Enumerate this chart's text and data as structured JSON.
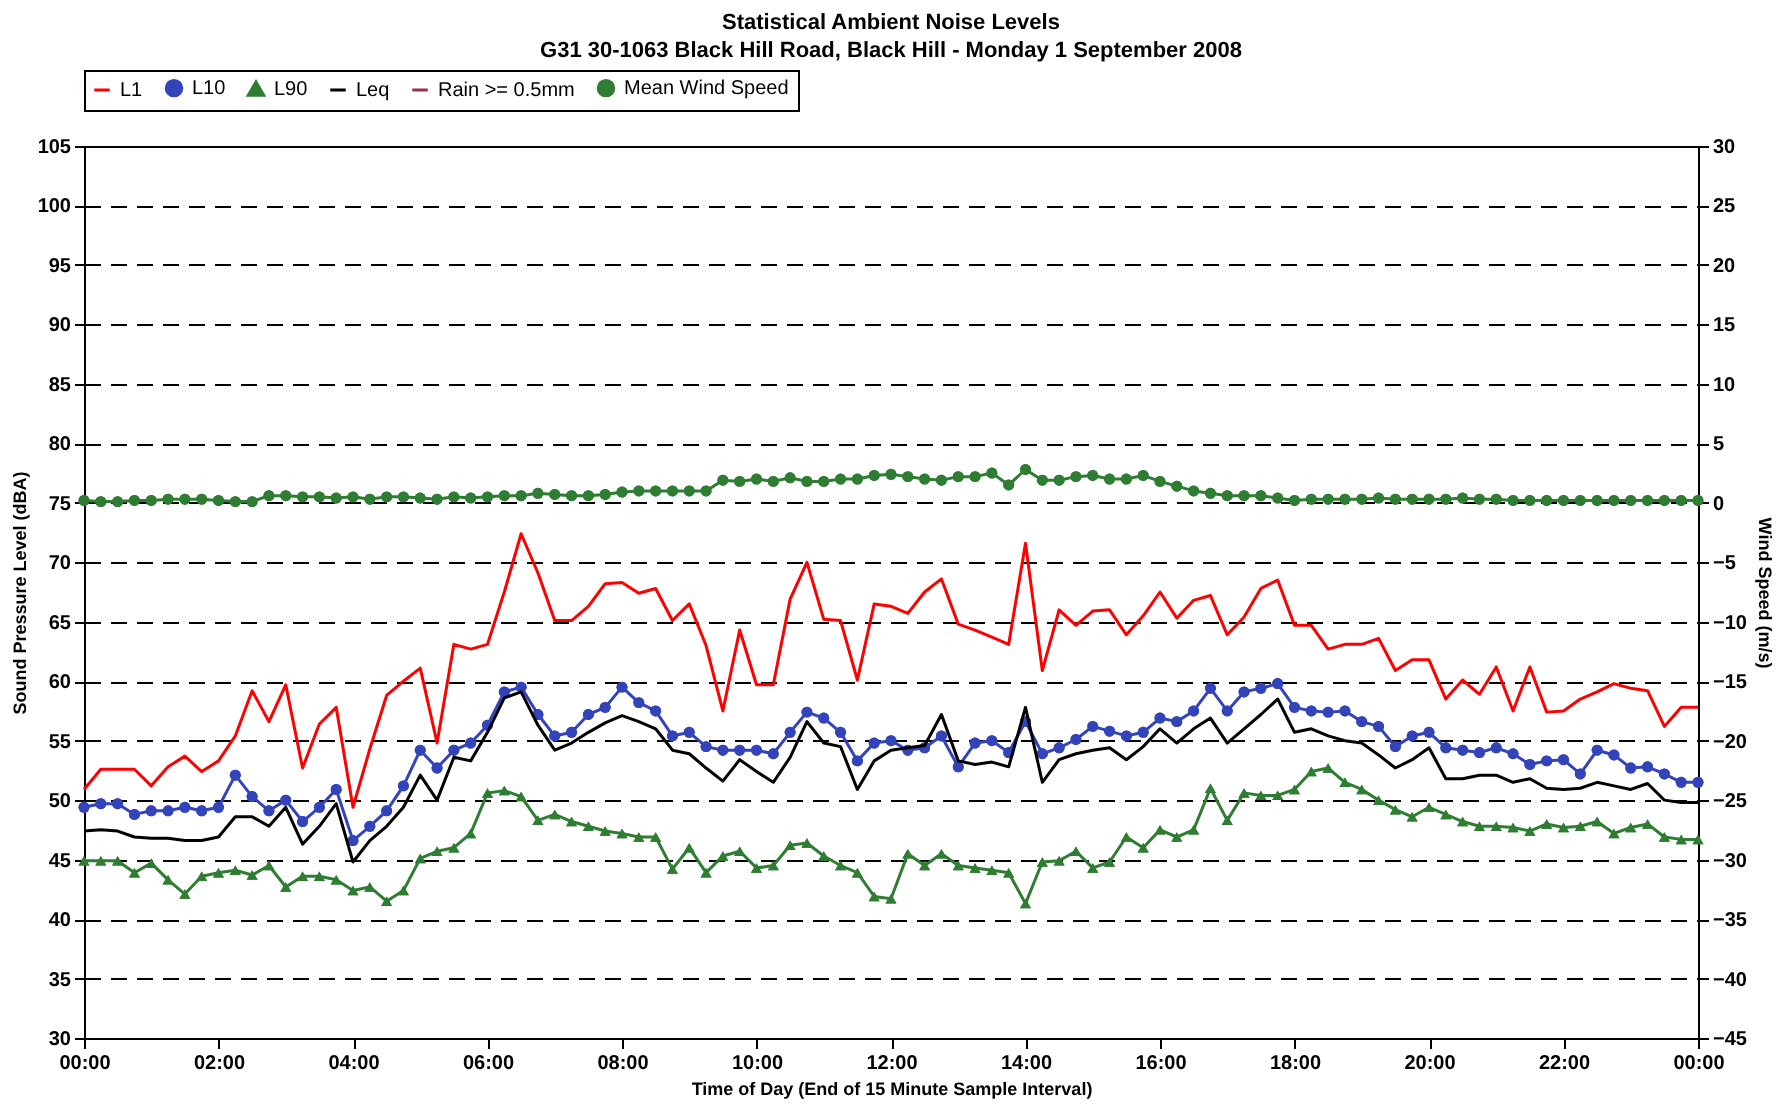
{
  "chart_data": {
    "type": "line",
    "title": "Statistical Ambient Noise Levels",
    "subtitle": "G31 30-1063 Black Hill Road, Black Hill - Monday 1 September 2008",
    "xlabel": "Time of Day (End of 15 Minute Sample Interval)",
    "ylabel": "Sound Pressure Level (dBA)",
    "y2label": "Wind Speed (m/s)",
    "x": [
      0,
      0.25,
      0.5,
      0.75,
      1,
      1.25,
      1.5,
      1.75,
      2,
      2.25,
      2.5,
      2.75,
      3,
      3.25,
      3.5,
      3.75,
      4,
      4.25,
      4.5,
      4.75,
      5,
      5.25,
      5.5,
      5.75,
      6,
      6.25,
      6.5,
      6.75,
      7,
      7.25,
      7.5,
      7.75,
      8,
      8.25,
      8.5,
      8.75,
      9,
      9.25,
      9.5,
      9.75,
      10,
      10.25,
      10.5,
      10.75,
      11,
      11.25,
      11.5,
      11.75,
      12,
      12.25,
      12.5,
      12.75,
      13,
      13.25,
      13.5,
      13.75,
      14,
      14.25,
      14.5,
      14.75,
      15,
      15.25,
      15.5,
      15.75,
      16,
      16.25,
      16.5,
      16.75,
      17,
      17.25,
      17.5,
      17.75,
      18,
      18.25,
      18.5,
      18.75,
      19,
      19.25,
      19.5,
      19.75,
      20,
      20.25,
      20.5,
      20.75,
      21,
      21.25,
      21.5,
      21.75,
      22,
      22.25,
      22.5,
      22.75,
      23,
      23.25,
      23.5,
      23.75,
      24
    ],
    "series": [
      {
        "name": "L1",
        "color": "#ff0000",
        "marker": "none",
        "line_style": "solid",
        "values": [
          50.9,
          52.6,
          52.6,
          52.6,
          51.2,
          52.8,
          53.7,
          52.4,
          53.3,
          55.4,
          59.2,
          56.6,
          59.7,
          52.7,
          56.4,
          57.8,
          49.4,
          54.3,
          58.8,
          60,
          61.1,
          54.8,
          63.1,
          62.7,
          63.1,
          67.5,
          72.4,
          69.1,
          65.1,
          65.1,
          66.3,
          68.2,
          68.3,
          67.4,
          67.8,
          65.1,
          66.5,
          63,
          57.5,
          64.3,
          59.7,
          59.7,
          66.9,
          70,
          65.2,
          65.1,
          60.1,
          66.5,
          66.3,
          65.7,
          67.5,
          68.6,
          64.8,
          64.3,
          63.7,
          63.1,
          71.6,
          60.9,
          66,
          64.7,
          65.9,
          66,
          63.9,
          65.5,
          67.5,
          65.3,
          66.8,
          67.2,
          63.9,
          65.4,
          67.8,
          68.5,
          64.7,
          64.7,
          62.7,
          63.1,
          63.1,
          63.6,
          60.9,
          61.8,
          61.8,
          58.5,
          60.1,
          58.9,
          61.2,
          57.5,
          61.2,
          57.4,
          57.5,
          58.5,
          59.1,
          59.8,
          59.4,
          59.2,
          56.2,
          57.8,
          57.8
        ]
      },
      {
        "name": "L10",
        "color": "#3344bb",
        "marker": "circle",
        "line_style": "solid",
        "values": [
          49.4,
          49.7,
          49.7,
          48.8,
          49.1,
          49.1,
          49.4,
          49.1,
          49.4,
          52.1,
          50.3,
          49.1,
          50,
          48.2,
          49.4,
          50.9,
          46.6,
          47.8,
          49.1,
          51.2,
          54.2,
          52.7,
          54.2,
          54.8,
          56.3,
          59.1,
          59.5,
          57.2,
          55.4,
          55.7,
          57.2,
          57.8,
          59.5,
          58.2,
          57.5,
          55.4,
          55.7,
          54.5,
          54.2,
          54.2,
          54.2,
          53.9,
          55.7,
          57.4,
          56.9,
          55.7,
          53.3,
          54.8,
          55,
          54.2,
          54.4,
          55.4,
          52.8,
          54.8,
          55,
          54,
          56.6,
          53.9,
          54.4,
          55.1,
          56.2,
          55.8,
          55.4,
          55.7,
          56.9,
          56.6,
          57.5,
          59.4,
          57.5,
          59.1,
          59.4,
          59.8,
          57.8,
          57.5,
          57.4,
          57.5,
          56.6,
          56.2,
          54.5,
          55.4,
          55.7,
          54.4,
          54.2,
          54,
          54.4,
          53.9,
          53,
          53.3,
          53.4,
          52.2,
          54.2,
          53.8,
          52.7,
          52.8,
          52.2,
          51.5,
          51.5
        ]
      },
      {
        "name": "L90",
        "color": "#2e7d32",
        "marker": "triangle",
        "line_style": "solid",
        "values": [
          44.9,
          44.9,
          44.9,
          43.9,
          44.7,
          43.3,
          42.1,
          43.6,
          43.9,
          44.1,
          43.7,
          44.5,
          42.7,
          43.6,
          43.6,
          43.3,
          42.4,
          42.7,
          41.5,
          42.4,
          45.1,
          45.7,
          46,
          47.2,
          50.6,
          50.8,
          50.3,
          48.3,
          48.8,
          48.2,
          47.8,
          47.4,
          47.2,
          46.9,
          46.9,
          44.2,
          46,
          43.9,
          45.3,
          45.7,
          44.3,
          44.5,
          46.2,
          46.4,
          45.3,
          44.5,
          43.9,
          41.9,
          41.7,
          45.5,
          44.5,
          45.5,
          44.5,
          44.3,
          44.1,
          43.9,
          41.3,
          44.8,
          44.9,
          45.7,
          44.3,
          44.8,
          46.9,
          46,
          47.5,
          46.9,
          47.5,
          51,
          48.3,
          50.6,
          50.4,
          50.4,
          50.9,
          52.4,
          52.7,
          51.5,
          50.9,
          50,
          49.2,
          48.6,
          49.4,
          48.8,
          48.2,
          47.8,
          47.8,
          47.7,
          47.4,
          48,
          47.7,
          47.8,
          48.2,
          47.2,
          47.7,
          48,
          46.9,
          46.7,
          46.7
        ]
      },
      {
        "name": "Leq",
        "color": "#000000",
        "marker": "none",
        "line_style": "solid",
        "values": [
          47.4,
          47.5,
          47.4,
          46.9,
          46.8,
          46.8,
          46.6,
          46.6,
          46.9,
          48.6,
          48.6,
          47.8,
          49.4,
          46.3,
          47.8,
          49.7,
          44.8,
          46.6,
          47.8,
          49.4,
          52.1,
          50,
          53.6,
          53.3,
          55.7,
          58.6,
          59.1,
          56.3,
          54.2,
          54.8,
          55.7,
          56.5,
          57.1,
          56.6,
          56,
          54.2,
          53.9,
          52.7,
          51.6,
          53.4,
          52.4,
          51.5,
          53.6,
          56.6,
          54.8,
          54.5,
          50.9,
          53.3,
          54.2,
          54.4,
          54.6,
          57.2,
          53.3,
          53,
          53.2,
          52.8,
          57.8,
          51.5,
          53.4,
          53.9,
          54.2,
          54.4,
          53.4,
          54.5,
          56,
          54.8,
          56,
          56.9,
          54.8,
          56,
          57.2,
          58.5,
          55.7,
          56,
          55.4,
          55,
          54.8,
          53.8,
          52.7,
          53.4,
          54.4,
          51.8,
          51.8,
          52.1,
          52.1,
          51.5,
          51.8,
          51,
          50.9,
          51,
          51.5,
          51.2,
          50.9,
          51.4,
          50,
          49.8,
          49.8
        ]
      },
      {
        "name": "Rain >= 0.5mm",
        "color": "#993344",
        "marker": "none",
        "line_style": "dashed",
        "values": [
          null,
          null,
          null,
          null,
          null,
          null,
          null,
          null,
          null,
          null,
          null,
          null,
          null,
          null,
          null,
          null,
          null,
          null,
          null,
          null,
          null,
          null,
          null,
          null,
          null,
          null,
          null,
          null,
          null,
          null,
          null,
          null,
          null,
          null,
          null,
          null,
          null,
          null,
          null,
          null,
          null,
          null,
          null,
          null,
          null,
          null,
          null,
          null,
          null,
          null,
          null,
          null,
          null,
          null,
          null,
          null,
          null,
          null,
          null,
          null,
          null,
          null,
          null,
          null,
          null,
          null,
          null,
          null,
          null,
          null,
          null,
          null,
          null,
          null,
          null,
          null,
          null,
          null,
          null,
          null,
          null,
          null,
          null,
          null,
          null,
          null,
          null,
          null,
          null,
          null,
          null,
          null,
          null,
          null,
          null,
          null,
          null
        ]
      },
      {
        "name": "Mean Wind Speed",
        "color": "#2e7d32",
        "marker": "circle",
        "line_style": "solid",
        "axis": "y2",
        "values": [
          0.2,
          0.1,
          0.1,
          0.2,
          0.2,
          0.3,
          0.3,
          0.3,
          0.2,
          0.1,
          0.1,
          0.6,
          0.6,
          0.5,
          0.5,
          0.4,
          0.5,
          0.3,
          0.5,
          0.5,
          0.4,
          0.3,
          0.5,
          0.4,
          0.5,
          0.6,
          0.6,
          0.8,
          0.7,
          0.6,
          0.6,
          0.7,
          0.9,
          1.0,
          1.0,
          1.0,
          1.0,
          1.0,
          1.9,
          1.8,
          2.0,
          1.8,
          2.1,
          1.8,
          1.8,
          2.0,
          2.0,
          2.3,
          2.4,
          2.2,
          2.0,
          1.9,
          2.2,
          2.2,
          2.5,
          1.5,
          2.8,
          1.9,
          1.9,
          2.2,
          2.3,
          2.0,
          2.0,
          2.3,
          1.8,
          1.4,
          1.0,
          0.8,
          0.6,
          0.6,
          0.6,
          0.4,
          0.2,
          0.3,
          0.3,
          0.3,
          0.3,
          0.4,
          0.3,
          0.3,
          0.3,
          0.3,
          0.4,
          0.3,
          0.3,
          0.2,
          0.2,
          0.2,
          0.2,
          0.2,
          0.2,
          0.2,
          0.2,
          0.2,
          0.2,
          0.2,
          0.2
        ]
      }
    ],
    "xlim": [
      0,
      24
    ],
    "xticks": [
      {
        "value": 0,
        "label": "00:00"
      },
      {
        "value": 2,
        "label": "02:00"
      },
      {
        "value": 4,
        "label": "04:00"
      },
      {
        "value": 6,
        "label": "06:00"
      },
      {
        "value": 8,
        "label": "08:00"
      },
      {
        "value": 10,
        "label": "10:00"
      },
      {
        "value": 12,
        "label": "12:00"
      },
      {
        "value": 14,
        "label": "14:00"
      },
      {
        "value": 16,
        "label": "16:00"
      },
      {
        "value": 18,
        "label": "18:00"
      },
      {
        "value": 20,
        "label": "20:00"
      },
      {
        "value": 22,
        "label": "22:00"
      },
      {
        "value": 24,
        "label": "00:00"
      }
    ],
    "ylim": [
      30,
      105
    ],
    "yticks": [
      30,
      35,
      40,
      45,
      50,
      55,
      60,
      65,
      70,
      75,
      80,
      85,
      90,
      95,
      100,
      105
    ],
    "y2lim": [
      -45,
      30
    ],
    "y2ticks": [
      -45,
      -40,
      -35,
      -30,
      -25,
      -20,
      -15,
      -10,
      -5,
      0,
      5,
      10,
      15,
      20,
      25,
      30
    ],
    "grid": "y",
    "legend": "top"
  }
}
